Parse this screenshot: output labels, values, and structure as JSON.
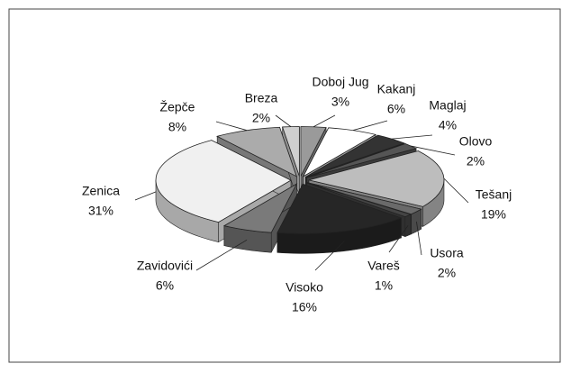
{
  "chart_data": {
    "type": "pie",
    "categories": [
      "Doboj Jug",
      "Kakanj",
      "Maglaj",
      "Olovo",
      "Tešanj",
      "Usora",
      "Vareš",
      "Visoko",
      "Zavidovići",
      "Zenica",
      "Žepče",
      "Breza"
    ],
    "values": [
      3,
      6,
      4,
      2,
      19,
      2,
      1,
      16,
      6,
      31,
      8,
      2
    ],
    "value_labels": [
      "3%",
      "6%",
      "4%",
      "2%",
      "19%",
      "2%",
      "1%",
      "16%",
      "6%",
      "31%",
      "8%",
      "2%"
    ],
    "colors": [
      "#9a9a9a",
      "#ffffff",
      "#333333",
      "#555555",
      "#bdbdbd",
      "#6a6a6a",
      "#444444",
      "#262626",
      "#7a7a7a",
      "#f0f0f0",
      "#ababab",
      "#cfcfcf"
    ]
  }
}
